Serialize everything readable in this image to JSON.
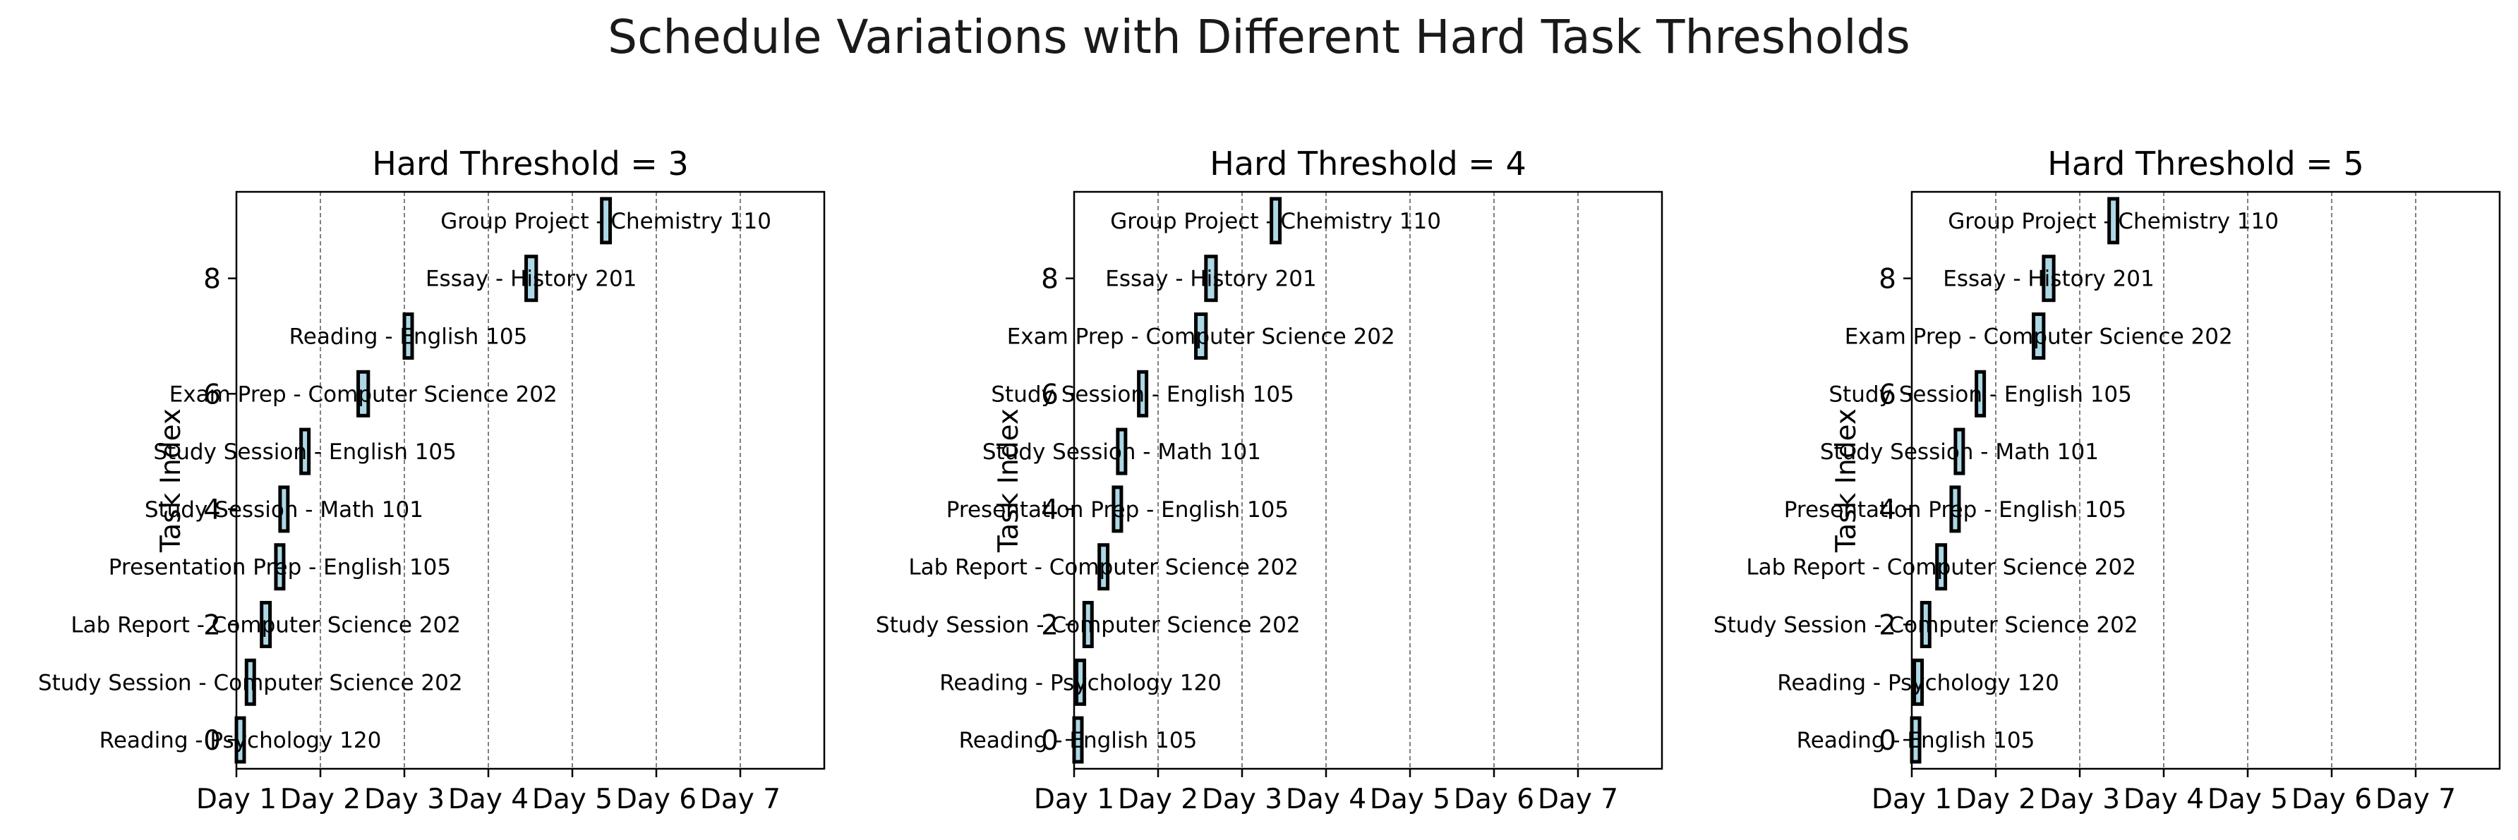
{
  "figure": {
    "suptitle": "Schedule Variations with Different Hard Task Thresholds",
    "colors": {
      "bar_fill": "#add8e6",
      "bar_edge": "#000000",
      "grid": "#808080",
      "axes": "#000000",
      "text": "#000000"
    }
  },
  "chart_data": [
    {
      "type": "bar",
      "orientation": "horizontal",
      "title": "Hard Threshold = 3",
      "xlabel": "",
      "ylabel": "Task Index",
      "xlim": [
        0,
        7
      ],
      "ylim": [
        -0.5,
        9.5
      ],
      "xticks": [
        0,
        1,
        2,
        3,
        4,
        5,
        6
      ],
      "xtick_labels": [
        "Day 1",
        "Day 2",
        "Day 3",
        "Day 4",
        "Day 5",
        "Day 6",
        "Day 7"
      ],
      "yticks": [
        0,
        2,
        4,
        6,
        8
      ],
      "ytick_labels": [
        "0",
        "2",
        "4",
        "6",
        "8"
      ],
      "grid": "x",
      "tasks": [
        {
          "index": 0,
          "label": "Reading - Psychology 120",
          "start": 0.0,
          "duration": 0.05
        },
        {
          "index": 1,
          "label": "Study Session - Computer Science 202",
          "start": 0.12,
          "duration": 0.05
        },
        {
          "index": 2,
          "label": "Lab Report - Computer Science 202",
          "start": 0.3,
          "duration": 0.1
        },
        {
          "index": 3,
          "label": "Presentation Prep - English 105",
          "start": 0.47,
          "duration": 0.05
        },
        {
          "index": 4,
          "label": "Study Session - Math 101",
          "start": 0.52,
          "duration": 0.05
        },
        {
          "index": 5,
          "label": "Study Session - English 105",
          "start": 0.77,
          "duration": 0.06
        },
        {
          "index": 6,
          "label": "Exam Prep - Computer Science 202",
          "start": 1.45,
          "duration": 0.12
        },
        {
          "index": 7,
          "label": "Reading - English 105",
          "start": 2.0,
          "duration": 0.05
        },
        {
          "index": 8,
          "label": "Essay - History 201",
          "start": 3.45,
          "duration": 0.12
        },
        {
          "index": 9,
          "label": "Group Project - Chemistry 110",
          "start": 4.35,
          "duration": 0.1
        }
      ]
    },
    {
      "type": "bar",
      "orientation": "horizontal",
      "title": "Hard Threshold = 4",
      "xlabel": "",
      "ylabel": "Task Index",
      "xlim": [
        0,
        7
      ],
      "ylim": [
        -0.5,
        9.5
      ],
      "xticks": [
        0,
        1,
        2,
        3,
        4,
        5,
        6
      ],
      "xtick_labels": [
        "Day 1",
        "Day 2",
        "Day 3",
        "Day 4",
        "Day 5",
        "Day 6",
        "Day 7"
      ],
      "yticks": [
        0,
        2,
        4,
        6,
        8
      ],
      "ytick_labels": [
        "0",
        "2",
        "4",
        "6",
        "8"
      ],
      "grid": "x",
      "tasks": [
        {
          "index": 0,
          "label": "Reading - English 105",
          "start": 0.0,
          "duration": 0.05
        },
        {
          "index": 1,
          "label": "Reading - Psychology 120",
          "start": 0.03,
          "duration": 0.05
        },
        {
          "index": 2,
          "label": "Study Session - Computer Science 202",
          "start": 0.12,
          "duration": 0.05
        },
        {
          "index": 3,
          "label": "Lab Report - Computer Science 202",
          "start": 0.3,
          "duration": 0.1
        },
        {
          "index": 4,
          "label": "Presentation Prep - English 105",
          "start": 0.47,
          "duration": 0.05
        },
        {
          "index": 5,
          "label": "Study Session - Math 101",
          "start": 0.52,
          "duration": 0.05
        },
        {
          "index": 6,
          "label": "Study Session - English 105",
          "start": 0.77,
          "duration": 0.06
        },
        {
          "index": 7,
          "label": "Exam Prep - Computer Science 202",
          "start": 1.45,
          "duration": 0.12
        },
        {
          "index": 8,
          "label": "Essay - History 201",
          "start": 1.57,
          "duration": 0.12
        },
        {
          "index": 9,
          "label": "Group Project - Chemistry 110",
          "start": 2.35,
          "duration": 0.1
        }
      ]
    },
    {
      "type": "bar",
      "orientation": "horizontal",
      "title": "Hard Threshold = 5",
      "xlabel": "",
      "ylabel": "Task Index",
      "xlim": [
        0,
        7
      ],
      "ylim": [
        -0.5,
        9.5
      ],
      "xticks": [
        0,
        1,
        2,
        3,
        4,
        5,
        6
      ],
      "xtick_labels": [
        "Day 1",
        "Day 2",
        "Day 3",
        "Day 4",
        "Day 5",
        "Day 6",
        "Day 7"
      ],
      "yticks": [
        0,
        2,
        4,
        6,
        8
      ],
      "ytick_labels": [
        "0",
        "2",
        "4",
        "6",
        "8"
      ],
      "grid": "x",
      "tasks": [
        {
          "index": 0,
          "label": "Reading - English 105",
          "start": 0.0,
          "duration": 0.05
        },
        {
          "index": 1,
          "label": "Reading - Psychology 120",
          "start": 0.03,
          "duration": 0.05
        },
        {
          "index": 2,
          "label": "Study Session - Computer Science 202",
          "start": 0.12,
          "duration": 0.05
        },
        {
          "index": 3,
          "label": "Lab Report - Computer Science 202",
          "start": 0.3,
          "duration": 0.1
        },
        {
          "index": 4,
          "label": "Presentation Prep - English 105",
          "start": 0.47,
          "duration": 0.05
        },
        {
          "index": 5,
          "label": "Study Session - Math 101",
          "start": 0.52,
          "duration": 0.05
        },
        {
          "index": 6,
          "label": "Study Session - English 105",
          "start": 0.77,
          "duration": 0.06
        },
        {
          "index": 7,
          "label": "Exam Prep - Computer Science 202",
          "start": 1.45,
          "duration": 0.12
        },
        {
          "index": 8,
          "label": "Essay - History 201",
          "start": 1.57,
          "duration": 0.12
        },
        {
          "index": 9,
          "label": "Group Project - Chemistry 110",
          "start": 2.35,
          "duration": 0.1
        }
      ]
    }
  ]
}
